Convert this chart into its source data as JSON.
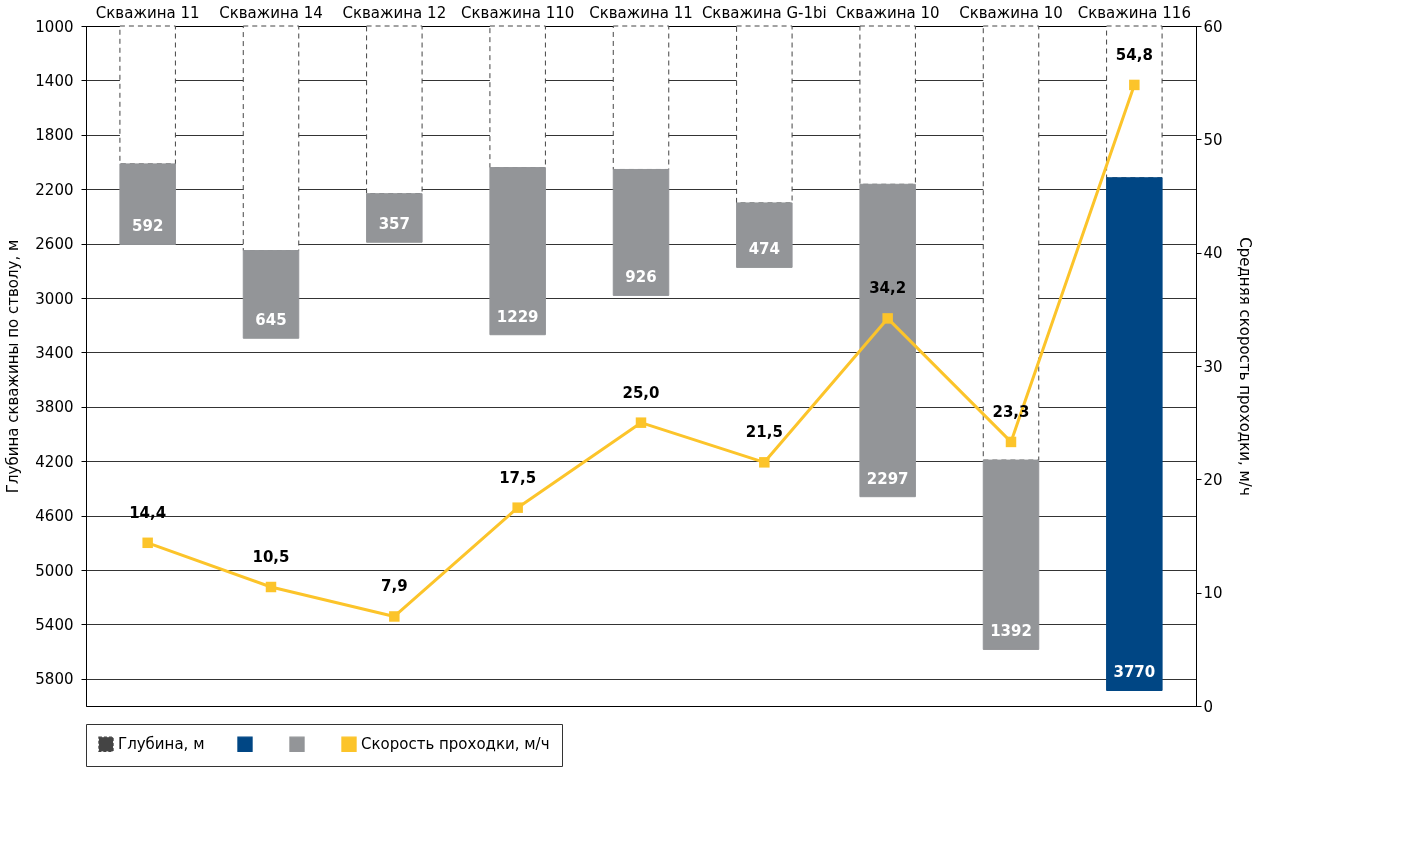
{
  "chart_data": {
    "type": "bar",
    "categories": [
      "Скважина 11",
      "Скважина 14",
      "Скважина 12",
      "Скважина 110",
      "Скважина 11",
      "Скважина G-1bi",
      "Скважина 10",
      "Скважина 10",
      "Скважина 116"
    ],
    "ylabel": "Глубина скважины по стволу, м",
    "y2label": "Средняя скорость проходки, м/ч",
    "ylim": [
      6000,
      1000
    ],
    "yticks": [
      1000,
      1400,
      1800,
      2200,
      2600,
      3000,
      3400,
      3800,
      4200,
      4600,
      5000,
      5400,
      5800
    ],
    "y2lim": [
      0,
      60
    ],
    "y2ticks": [
      0,
      10,
      20,
      30,
      40,
      50,
      60
    ],
    "grid": "y",
    "legend": "bottom",
    "series": [
      {
        "name": "Глубина, м",
        "type": "bar",
        "color": "#444444",
        "line_style": "dashed",
        "base": [
          1000,
          1000,
          1000,
          1000,
          1000,
          1000,
          1000,
          1000,
          1000
        ],
        "values": [
          1014,
          1651,
          1233,
          1041,
          1055,
          1301,
          1164,
          3192,
          1116
        ]
      },
      {
        "color": "#004684",
        "base": [
          null,
          null,
          null,
          null,
          null,
          null,
          null,
          null,
          2116
        ],
        "values": [
          null,
          null,
          null,
          null,
          null,
          null,
          null,
          null,
          3770
        ],
        "value_labels": [
          null,
          null,
          null,
          null,
          null,
          null,
          null,
          null,
          "3770"
        ]
      },
      {
        "color": "#939598",
        "base": [
          2014,
          2651,
          2233,
          2041,
          2055,
          2301,
          2164,
          4192,
          null
        ],
        "values": [
          592,
          645,
          357,
          1229,
          926,
          474,
          2297,
          1392,
          null
        ],
        "value_labels": [
          "592",
          "645",
          "357",
          "1229",
          "926",
          "474",
          "2297",
          "1392",
          null
        ]
      },
      {
        "name": "Скорость проходки, м/ч",
        "type": "line",
        "axis": "y2",
        "color": "#fcc42a",
        "marker": "square",
        "values": [
          14.4,
          10.5,
          7.9,
          17.5,
          25.0,
          21.5,
          34.2,
          23.3,
          54.8
        ],
        "value_labels": [
          "14,4",
          "10,5",
          "7,9",
          "17,5",
          "25,0",
          "21,5",
          "34,2",
          "23,3",
          "54,8"
        ]
      }
    ]
  }
}
